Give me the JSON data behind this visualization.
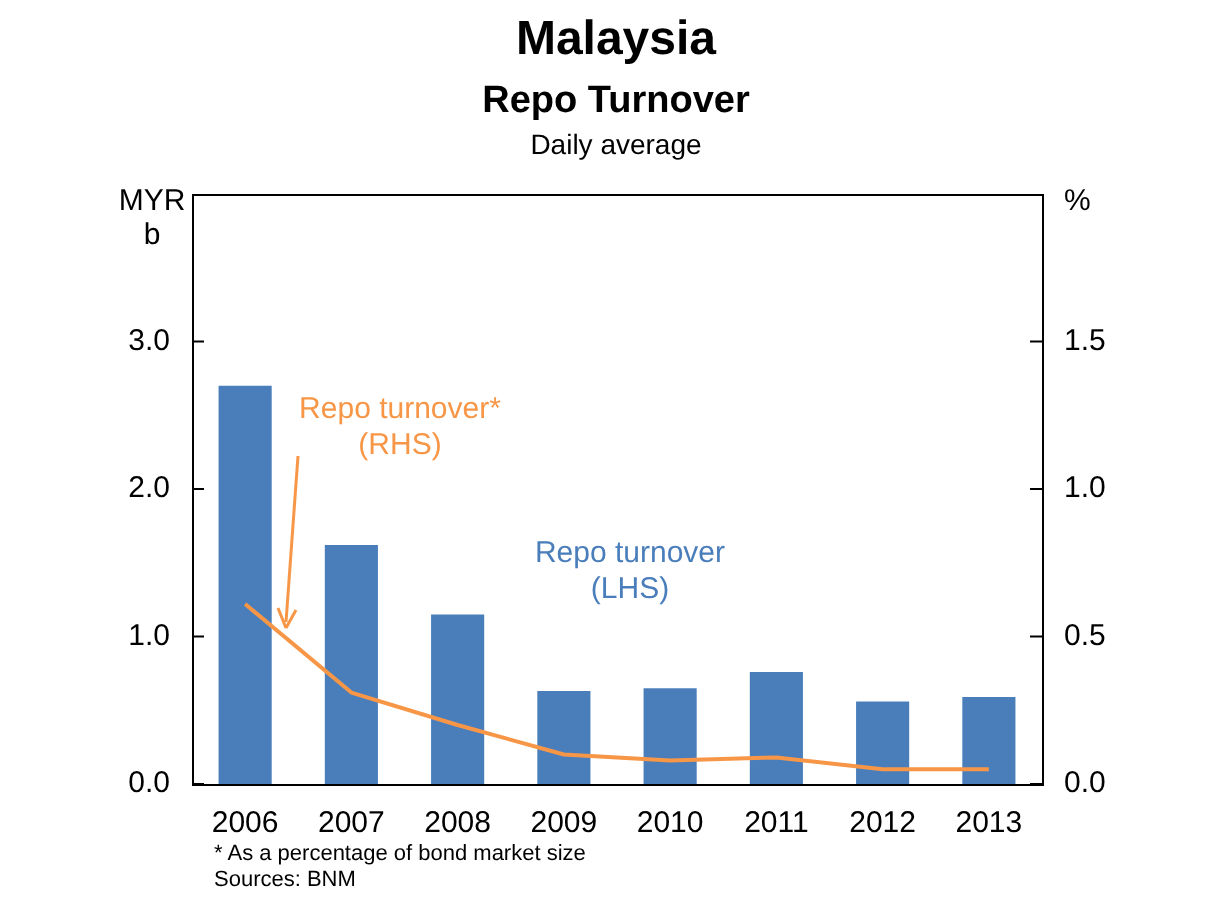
{
  "chart_data": {
    "type": "bar",
    "title": "Malaysia",
    "subtitle": "Repo Turnover",
    "ylabel": "MYR b",
    "y2label": "%",
    "annotations": [
      "Daily average",
      "* As a percentage of bond market size",
      "Sources: BNM"
    ],
    "categories": [
      "2006",
      "2007",
      "2008",
      "2009",
      "2010",
      "2011",
      "2012",
      "2013"
    ],
    "series": [
      {
        "name": "Repo turnover (LHS)",
        "color": "#4a7ebb",
        "values": [
          2.7,
          1.62,
          1.15,
          0.63,
          0.65,
          0.76,
          0.56,
          0.59
        ]
      },
      {
        "name": "Repo turnover* (RHS)",
        "type": "line",
        "axis": "y2",
        "color": "#f79646",
        "values": [
          0.61,
          0.31,
          0.2,
          0.1,
          0.08,
          0.09,
          0.05,
          0.05
        ]
      }
    ],
    "ylim": [
      0,
      4
    ],
    "yticks": [
      {
        "value": 0,
        "label": "0.0"
      },
      {
        "value": 1,
        "label": "1.0"
      },
      {
        "value": 2,
        "label": "2.0"
      },
      {
        "value": 3,
        "label": "3.0"
      }
    ],
    "y2lim": [
      0,
      2
    ],
    "y2ticks": [
      {
        "value": 0,
        "label": "0.0"
      },
      {
        "value": 0.5,
        "label": "0.5"
      },
      {
        "value": 1,
        "label": "1.0"
      },
      {
        "value": 1.5,
        "label": "1.5"
      }
    ],
    "grid": false,
    "legend": false,
    "marker": "none",
    "line_style": "solid"
  }
}
